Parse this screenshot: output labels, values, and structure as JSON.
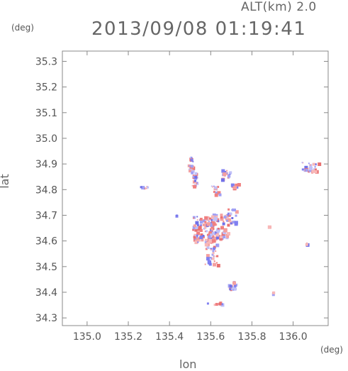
{
  "header": {
    "altitude": "ALT(km) 2.0",
    "timestamp": "2013/09/08 01:19:41"
  },
  "axes": {
    "y_unit": "(deg)",
    "x_unit": "(deg)",
    "x_label": "lon",
    "y_label": "lat",
    "x_ticks": [
      "135.0",
      "135.2",
      "135.4",
      "135.6",
      "135.8",
      "136.0"
    ],
    "y_ticks": [
      "35.3",
      "35.2",
      "35.1",
      "35.0",
      "34.9",
      "34.8",
      "34.7",
      "34.6",
      "34.5",
      "34.4",
      "34.3"
    ],
    "x_range": [
      134.88,
      136.17
    ],
    "y_range": [
      34.27,
      35.34
    ]
  },
  "colors": {
    "positive": "#f08080",
    "negative": "#8080f0",
    "axis": "#888888"
  },
  "chart_data": {
    "type": "scatter",
    "xlabel": "lon",
    "ylabel": "lat",
    "xlim": [
      134.88,
      136.17
    ],
    "ylim": [
      34.27,
      35.34
    ],
    "grid": false,
    "clusters": [
      {
        "lon": 135.5,
        "lat": 34.9,
        "spread": [
          0.015,
          0.03
        ],
        "count": 18
      },
      {
        "lon": 135.52,
        "lat": 34.84,
        "spread": [
          0.015,
          0.03
        ],
        "count": 22
      },
      {
        "lon": 135.27,
        "lat": 34.81,
        "spread": [
          0.02,
          0.005
        ],
        "count": 6
      },
      {
        "lon": 135.67,
        "lat": 34.86,
        "spread": [
          0.02,
          0.02
        ],
        "count": 20
      },
      {
        "lon": 135.71,
        "lat": 34.82,
        "spread": [
          0.02,
          0.01
        ],
        "count": 12
      },
      {
        "lon": 135.62,
        "lat": 34.8,
        "spread": [
          0.02,
          0.02
        ],
        "count": 14
      },
      {
        "lon": 136.08,
        "lat": 34.89,
        "spread": [
          0.04,
          0.02
        ],
        "count": 28
      },
      {
        "lon": 135.56,
        "lat": 34.65,
        "spread": [
          0.05,
          0.05
        ],
        "count": 90
      },
      {
        "lon": 135.63,
        "lat": 34.66,
        "spread": [
          0.05,
          0.05
        ],
        "count": 80
      },
      {
        "lon": 135.6,
        "lat": 34.56,
        "spread": [
          0.03,
          0.05
        ],
        "count": 45
      },
      {
        "lon": 135.7,
        "lat": 34.7,
        "spread": [
          0.02,
          0.03
        ],
        "count": 18
      },
      {
        "lon": 135.7,
        "lat": 34.43,
        "spread": [
          0.02,
          0.02
        ],
        "count": 16
      },
      {
        "lon": 135.62,
        "lat": 34.36,
        "spread": [
          0.04,
          0.006
        ],
        "count": 10
      },
      {
        "lon": 135.52,
        "lat": 34.61,
        "spread": [
          0.015,
          0.015
        ],
        "count": 10
      },
      {
        "lon": 135.9,
        "lat": 34.4,
        "spread": [
          0.005,
          0.004
        ],
        "count": 3
      },
      {
        "lon": 136.06,
        "lat": 34.59,
        "spread": [
          0.005,
          0.004
        ],
        "count": 3
      },
      {
        "lon": 135.43,
        "lat": 34.7,
        "spread": [
          0.004,
          0.004
        ],
        "count": 2
      },
      {
        "lon": 135.88,
        "lat": 34.66,
        "spread": [
          0.003,
          0.003
        ],
        "count": 2
      }
    ]
  }
}
